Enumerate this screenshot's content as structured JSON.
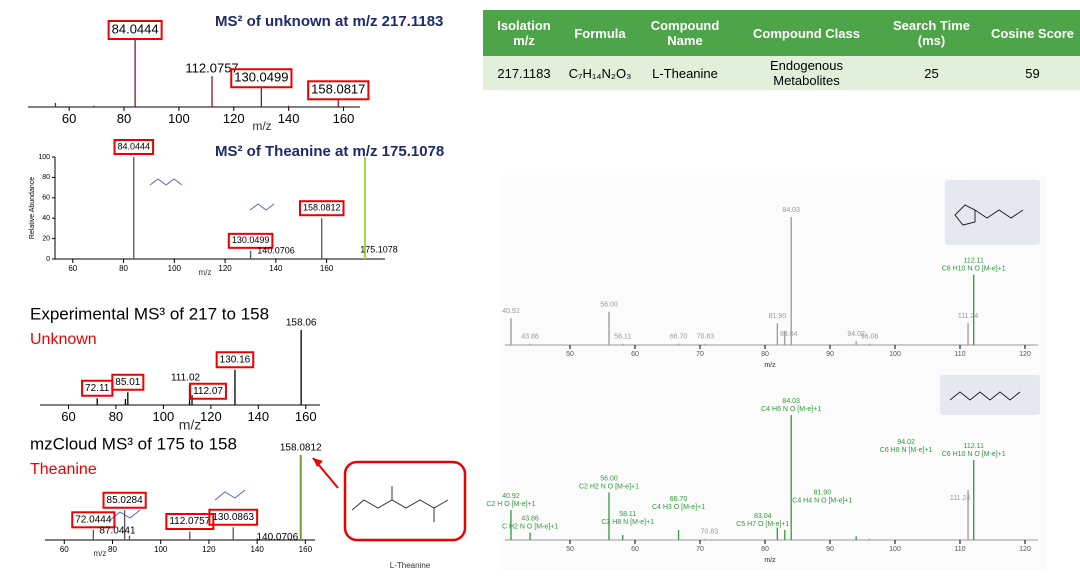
{
  "table": {
    "headers": [
      "Isolation m/z",
      "Formula",
      "Compound Name",
      "Compound Class",
      "Search Time (ms)",
      "Cosine Score"
    ],
    "rows": [
      [
        217.1183,
        "C₇H₁₄N₂O₃",
        "L-Theanine",
        "Endogenous Metabolites",
        25,
        59
      ]
    ]
  },
  "chart_data": [
    {
      "type": "spectrum",
      "title": "MS² of unknown at m/z 217.1183",
      "xlabel": "m/z",
      "x": [
        55,
        69,
        84.0444,
        112.0757,
        130.0499,
        140,
        158.0817
      ],
      "values": [
        6,
        2,
        100,
        46,
        28,
        2,
        10
      ],
      "x_labels": [
        null,
        null,
        "84.0444",
        "112.0757",
        "130.0499",
        null,
        "158.0817"
      ],
      "boxed": [
        false,
        false,
        true,
        false,
        true,
        false,
        true
      ],
      "colors": [
        "#8b1a1a",
        "#8b1a1a",
        "#8b1a1a",
        "#8b1a1a",
        "#8b1a1a",
        "#8b1a1a",
        "#8b1a1a"
      ],
      "xlim": [
        45,
        166
      ],
      "ylim": [
        0,
        100
      ],
      "xticks": [
        60,
        80,
        100,
        120,
        140,
        160
      ]
    },
    {
      "type": "spectrum",
      "title": "MS² of Theanine at m/z 175.1078",
      "xlabel": "m/z",
      "ylabel": "Relative Abundance",
      "x": [
        84.0444,
        130.0499,
        140.0706,
        158.0812,
        175.1078
      ],
      "values": [
        100,
        8,
        1,
        40,
        100
      ],
      "x_labels": [
        "84.0444",
        "130.0499",
        "140.0706",
        "158.0812",
        "175.1078"
      ],
      "boxed": [
        true,
        true,
        false,
        true,
        false
      ],
      "colors": [
        "#555555",
        "#555555",
        "#555555",
        "#555555",
        "#a3d63a"
      ],
      "xlim": [
        53,
        183
      ],
      "ylim": [
        0,
        100
      ],
      "xticks": [
        60,
        80,
        100,
        120,
        140,
        160
      ],
      "yticks": [
        0,
        20,
        40,
        60,
        80,
        100
      ]
    },
    {
      "type": "spectrum",
      "title": "Experimental MS³ of 217 to 158",
      "subtitle": "Unknown",
      "xlabel": "m/z",
      "x": [
        72.11,
        84,
        85.01,
        111.02,
        112.07,
        130.16,
        158.06
      ],
      "values": [
        9,
        8,
        17,
        27,
        13,
        47,
        100
      ],
      "x_labels": [
        "72.11",
        null,
        "85.01",
        "111.02",
        "112.07",
        "130.16",
        "158.06"
      ],
      "boxed": [
        true,
        false,
        true,
        false,
        true,
        true,
        false
      ],
      "colors": [
        "#000000",
        "#000000",
        "#000000",
        "#000000",
        "#000000",
        "#000000",
        "#000000"
      ],
      "xlim": [
        48,
        166
      ],
      "ylim": [
        0,
        100
      ],
      "xticks": [
        60,
        80,
        100,
        120,
        140,
        160
      ]
    },
    {
      "type": "spectrum",
      "title": "mzCloud MS³ of 175 to 158",
      "subtitle": "Theanine",
      "xlabel": "m/z",
      "structure_label": "L-Theanine",
      "x": [
        72.0444,
        85.0284,
        87.0441,
        112.0757,
        130.0863,
        140.0706,
        158.0812
      ],
      "values": [
        12,
        35,
        5,
        10,
        15,
        2,
        100
      ],
      "x_labels": [
        "72.0444",
        "85.0284",
        "87.0441",
        "112.0757",
        "130.0863",
        "140.0706",
        "158.0812"
      ],
      "boxed": [
        true,
        true,
        false,
        true,
        true,
        false,
        false
      ],
      "colors": [
        "#555555",
        "#555555",
        "#555555",
        "#555555",
        "#555555",
        "#555555",
        "#6aa32a"
      ],
      "xlim": [
        52,
        164
      ],
      "ylim": [
        0,
        100
      ],
      "xticks": [
        60,
        80,
        100,
        120,
        140,
        160
      ]
    },
    {
      "type": "spectrum",
      "xlabel": "m/z",
      "x": [
        40.92,
        43.86,
        56.0,
        58.11,
        66.7,
        70.83,
        81.9,
        83.04,
        84.03,
        94.02,
        96.08,
        111.24,
        112.11
      ],
      "values": [
        21,
        1,
        26,
        1,
        1,
        1,
        17,
        11,
        100,
        3,
        1,
        17,
        55
      ],
      "x_labels": [
        "40.92",
        "43.86",
        "56.00",
        "58.11",
        "66.70",
        "70.83",
        "81.90",
        "83.04",
        "84.03",
        "94.02",
        "96.08",
        "111.24",
        "112.11"
      ],
      "formulas": [
        null,
        null,
        null,
        null,
        null,
        null,
        null,
        null,
        null,
        null,
        null,
        null,
        "C6 H10 N O [M-e]+1"
      ],
      "boxed": [
        false,
        false,
        false,
        false,
        false,
        false,
        false,
        false,
        false,
        false,
        false,
        false,
        false
      ],
      "colors": [
        "#999999",
        "#999999",
        "#999999",
        "#999999",
        "#999999",
        "#999999",
        "#999999",
        "#999999",
        "#999999",
        "#999999",
        "#999999",
        "#999999",
        "#2e9a3a"
      ],
      "xlim": [
        40,
        122
      ],
      "ylim": [
        0,
        100
      ],
      "xticks": [
        50,
        60,
        70,
        80,
        90,
        100,
        110,
        120
      ]
    },
    {
      "type": "spectrum",
      "xlabel": "m/z",
      "x": [
        40.92,
        43.86,
        56.0,
        58.11,
        66.7,
        70.83,
        81.9,
        83.04,
        84.03,
        94.02,
        96.08,
        111.24,
        112.11
      ],
      "values": [
        24,
        6,
        38,
        4,
        8,
        1,
        10,
        8,
        100,
        3,
        1,
        40,
        64
      ],
      "x_labels": [
        "40.92",
        "43.86",
        "56.00",
        "58.11",
        "66.70",
        "70.83",
        "81.90",
        "83.04",
        "84.03",
        "94.02",
        null,
        "111.24",
        "112.11"
      ],
      "formulas": [
        "C2 H O [M-e]+1",
        "C H2 N O [M-e]+1",
        "C2 H2 N O [M-e]+1",
        "C3 H8 N [M-e]+1",
        "C4 H3 O [M-e]+1",
        null,
        "C4 H4 N O [M-e]+1",
        "C5 H7 O [M-e]+1",
        "C4 H6 N O [M-e]+1",
        "C6 H8 N [M-e]+1",
        null,
        null,
        "C6 H10 N O [M-e]+1"
      ],
      "boxed": [
        false,
        false,
        false,
        false,
        false,
        false,
        false,
        false,
        false,
        false,
        false,
        false,
        false
      ],
      "colors": [
        "#2e9a3a",
        "#2e9a3a",
        "#2e9a3a",
        "#2e9a3a",
        "#2e9a3a",
        "#999999",
        "#2e9a3a",
        "#2e9a3a",
        "#2e9a3a",
        "#2e9a3a",
        "#999999",
        "#999999",
        "#2e9a3a"
      ],
      "xlim": [
        40,
        122
      ],
      "ylim": [
        0,
        100
      ],
      "xticks": [
        50,
        60,
        70,
        80,
        90,
        100,
        110,
        120
      ]
    }
  ]
}
